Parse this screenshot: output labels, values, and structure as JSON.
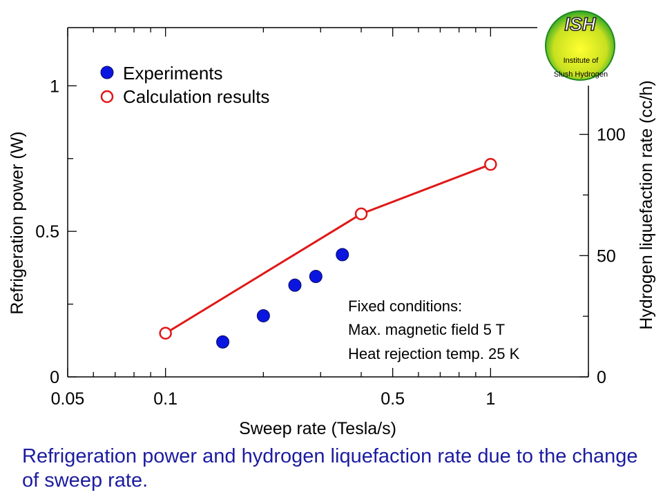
{
  "chart_data": {
    "type": "scatter",
    "x_scale": "log",
    "xlabel": "Sweep rate (Tesla/s)",
    "ylabel_left": "Refrigeration power (W)",
    "ylabel_right": "Hydrogen liquefaction rate (cc/h)",
    "xlim": [
      0.05,
      2
    ],
    "ylim_left": [
      0,
      1.2
    ],
    "ylim_right": [
      0,
      144
    ],
    "x_ticks": [
      {
        "value": 0.05,
        "label": "0.05"
      },
      {
        "value": 0.1,
        "label": "0.1"
      },
      {
        "value": 0.5,
        "label": "0.5"
      },
      {
        "value": 1,
        "label": "1"
      }
    ],
    "y_left_ticks": [
      {
        "value": 0,
        "label": "0"
      },
      {
        "value": 0.5,
        "label": "0.5"
      },
      {
        "value": 1,
        "label": "1"
      }
    ],
    "y_right_ticks": [
      {
        "value": 0,
        "label": "0"
      },
      {
        "value": 50,
        "label": "50"
      },
      {
        "value": 100,
        "label": "100"
      }
    ],
    "series": [
      {
        "name": "Experiments",
        "marker": "filled-circle",
        "color": "#0a16e0",
        "points": [
          [
            0.15,
            0.12
          ],
          [
            0.2,
            0.21
          ],
          [
            0.25,
            0.315
          ],
          [
            0.29,
            0.345
          ],
          [
            0.35,
            0.42
          ]
        ]
      },
      {
        "name": "Calculation results",
        "marker": "open-circle-line",
        "color": "#e01818",
        "points": [
          [
            0.1,
            0.15
          ],
          [
            0.4,
            0.56
          ],
          [
            1.0,
            0.73
          ]
        ]
      }
    ],
    "annotation": [
      "Fixed conditions:",
      "Max. magnetic field 5 T",
      "Heat rejection temp. 25 K"
    ]
  },
  "logo": {
    "title": "ISH",
    "line1": "Institute of",
    "line2": "Slush Hydrogen"
  },
  "caption": "Refrigeration power and hydrogen liquefaction rate due to the change of sweep rate."
}
